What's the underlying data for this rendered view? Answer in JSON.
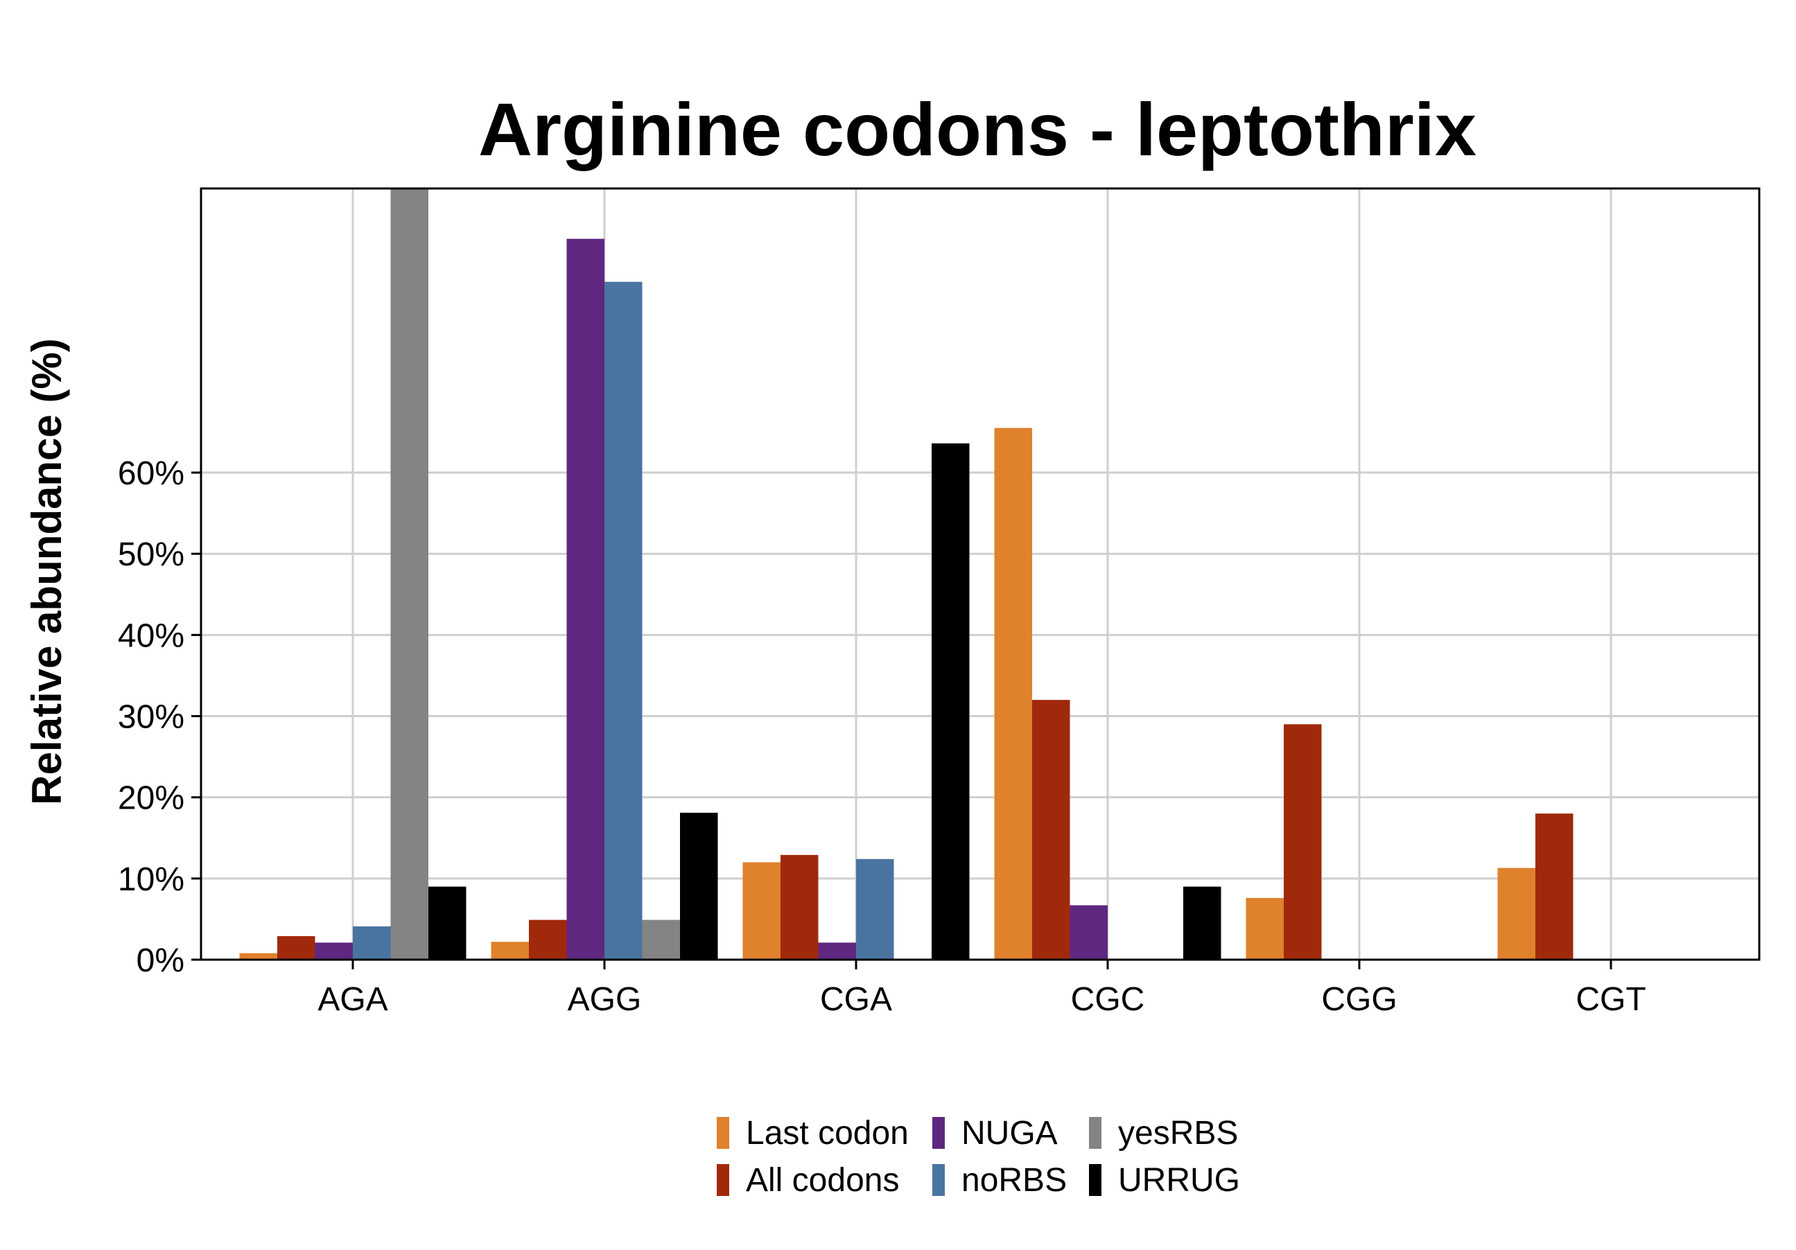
{
  "chart_data": {
    "type": "bar",
    "title": "Arginine codons - leptothrix",
    "xlabel": "",
    "ylabel": "Relative abundance (%)",
    "categories": [
      "AGA",
      "AGG",
      "CGA",
      "CGC",
      "CGG",
      "CGT"
    ],
    "yticks": [
      0,
      10,
      20,
      30,
      40,
      50,
      60
    ],
    "ytick_labels": [
      "0%",
      "10%",
      "20%",
      "30%",
      "40%",
      "50%",
      "60%"
    ],
    "ylim": [
      0,
      95
    ],
    "grid": true,
    "legend_position": "bottom",
    "series": [
      {
        "name": "Last codon",
        "color": "#e0812c",
        "values": [
          0.8,
          2.2,
          12,
          65.5,
          7.6,
          11.3
        ]
      },
      {
        "name": "All codons",
        "color": "#a1290b",
        "values": [
          2.9,
          4.9,
          12.9,
          32,
          29,
          18
        ]
      },
      {
        "name": "NUGA",
        "color": "#5f2780",
        "values": [
          2.1,
          88.8,
          2.1,
          6.7,
          0,
          0
        ]
      },
      {
        "name": "noRBS",
        "color": "#4a74a0",
        "values": [
          4.1,
          83.5,
          12.4,
          0,
          0,
          0
        ]
      },
      {
        "name": "yesRBS",
        "color": "#848484",
        "values": [
          95,
          4.9,
          0,
          0,
          0,
          0
        ]
      },
      {
        "name": "URRUG",
        "color": "#000000",
        "values": [
          9,
          18.1,
          63.6,
          9,
          0,
          0
        ]
      }
    ]
  }
}
